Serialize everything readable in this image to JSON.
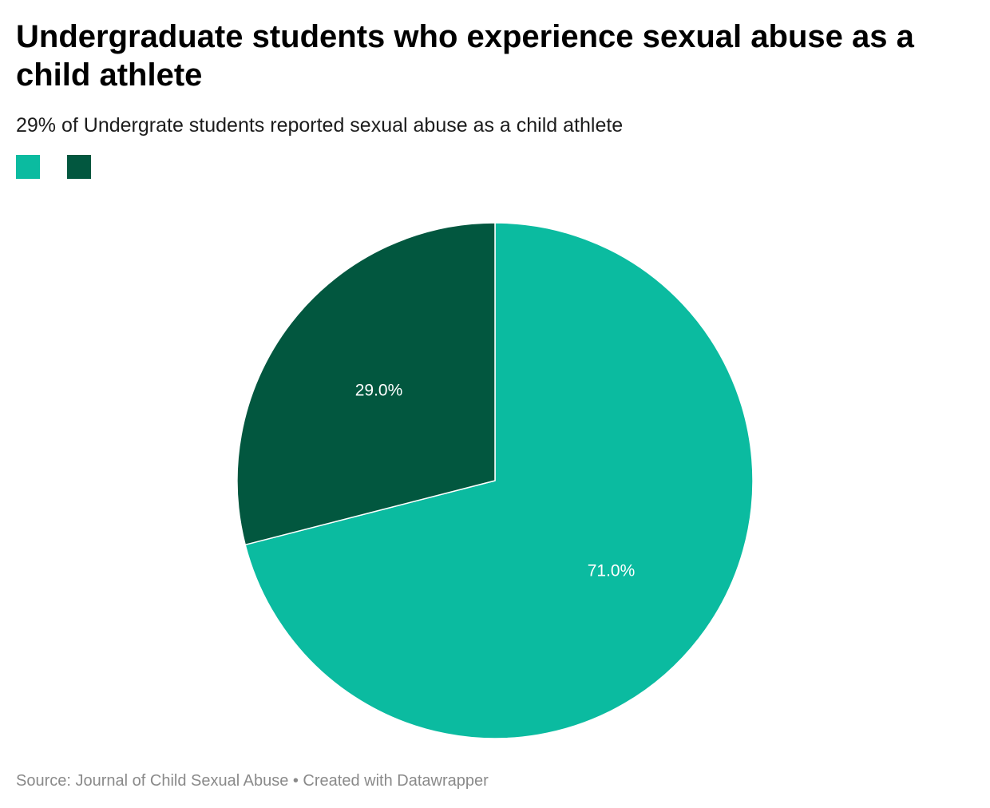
{
  "title": "Undergraduate students who experience sexual abuse as a child athlete",
  "subtitle": "29% of Undergrate students reported sexual abuse as a child athlete",
  "source": "Source: Journal of Child Sexual Abuse • Created with Datawrapper",
  "colors": {
    "no_abuse": "#0bbba0",
    "abuse": "#02573f",
    "separator": "#ffffff"
  },
  "chart_data": {
    "type": "pie",
    "title": "Undergraduate students who experience sexual abuse as a child athlete",
    "subtitle": "29% of Undergrate students reported sexual abuse as a child athlete",
    "start": "12 o'clock, clockwise",
    "slices": [
      {
        "value": 71.0,
        "label": "71.0%",
        "color": "#0bbba0"
      },
      {
        "value": 29.0,
        "label": "29.0%",
        "color": "#02573f"
      }
    ],
    "legend": {
      "placement": "top-left",
      "entries": [
        "#0bbba0",
        "#02573f"
      ]
    }
  }
}
